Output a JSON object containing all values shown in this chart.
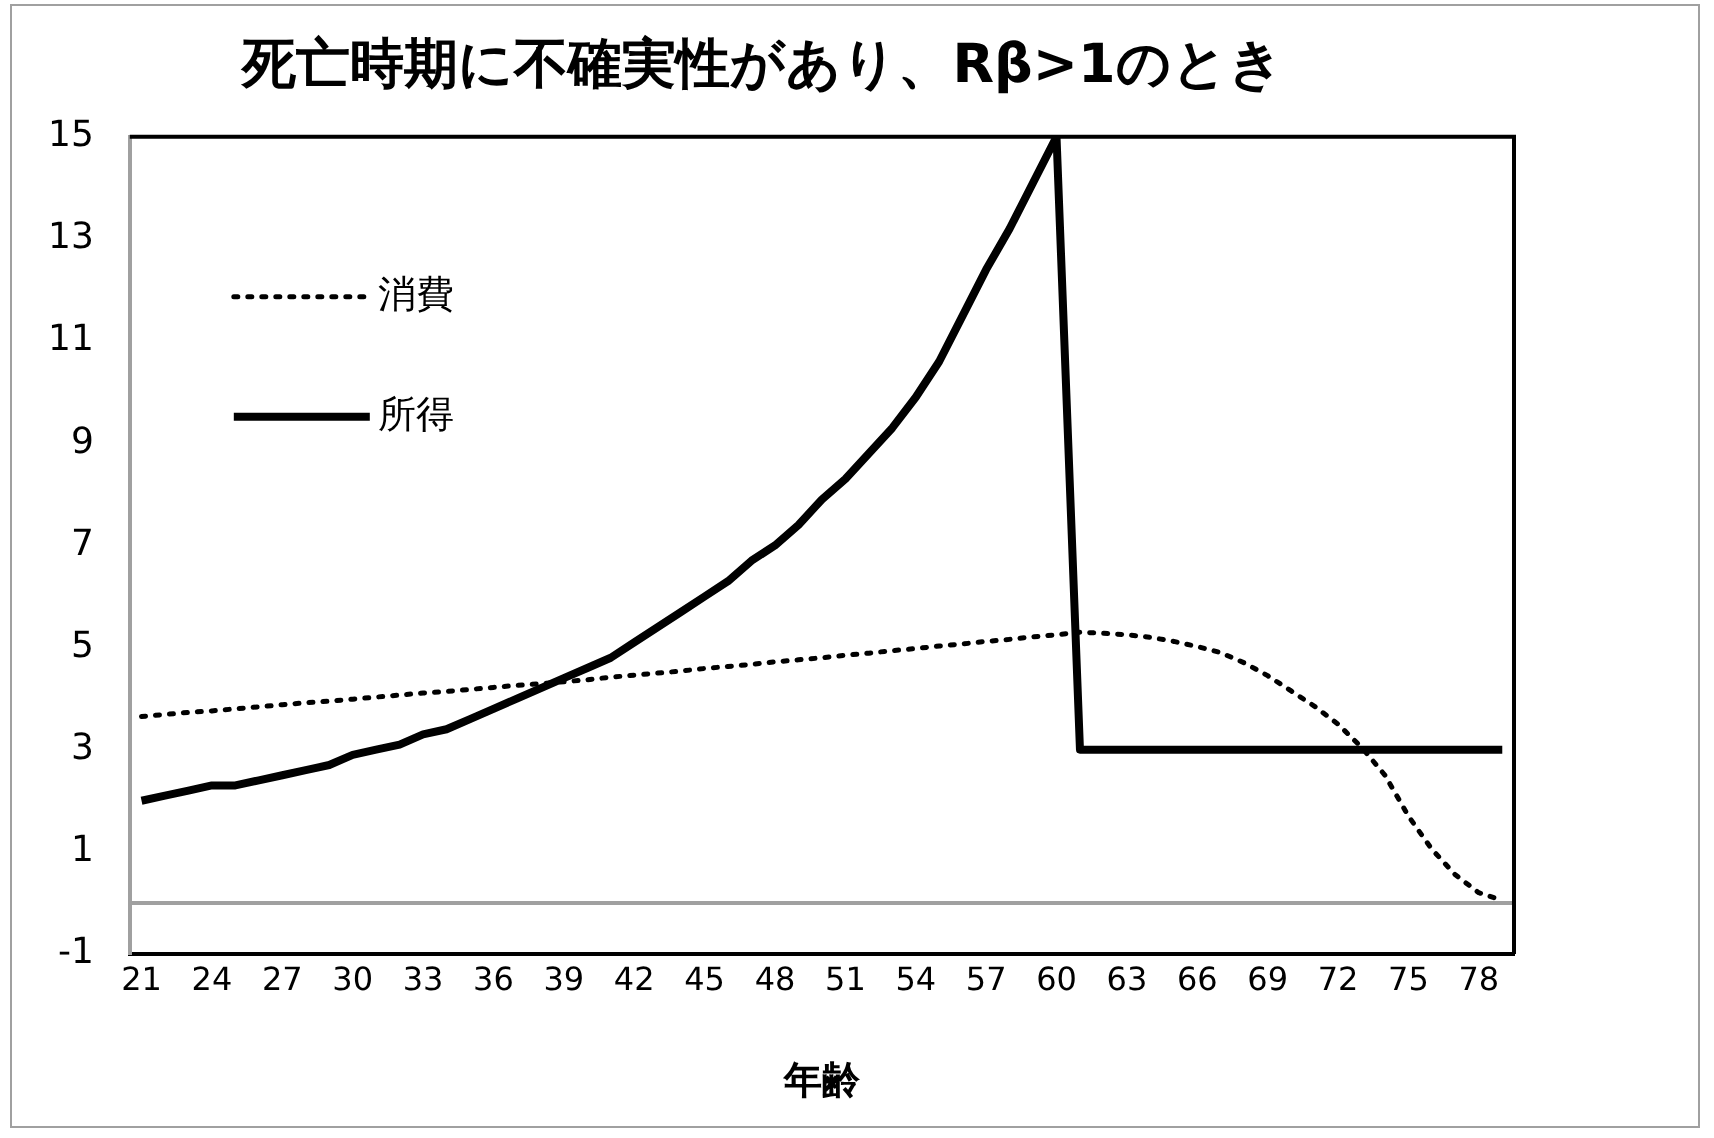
{
  "chart_data": {
    "type": "line",
    "title": "死亡時期に不確実性があり、Rβ>1のとき",
    "xlabel": "年齢",
    "categories": [
      "21",
      null,
      null,
      "24",
      null,
      null,
      "27",
      null,
      null,
      "30",
      null,
      null,
      "33",
      null,
      null,
      "36",
      null,
      null,
      "39",
      null,
      null,
      "42",
      null,
      null,
      "45",
      null,
      null,
      "48",
      null,
      null,
      "51",
      null,
      null,
      "54",
      null,
      null,
      "57",
      null,
      null,
      "60",
      null,
      null,
      "63",
      null,
      null,
      "66",
      null,
      null,
      "69",
      null,
      null,
      "72",
      null,
      null,
      "75",
      null,
      null,
      "78",
      null
    ],
    "series": [
      {
        "name": "消費",
        "color": "#000000",
        "line_style": "dotted",
        "values": [
          3.65,
          3.69,
          3.73,
          3.76,
          3.8,
          3.84,
          3.88,
          3.92,
          3.95,
          3.99,
          4.03,
          4.07,
          4.11,
          4.14,
          4.18,
          4.22,
          4.26,
          4.29,
          4.33,
          4.37,
          4.42,
          4.46,
          4.5,
          4.54,
          4.59,
          4.63,
          4.67,
          4.72,
          4.76,
          4.8,
          4.85,
          4.89,
          4.94,
          4.98,
          5.03,
          5.07,
          5.12,
          5.16,
          5.21,
          5.25,
          5.3,
          5.28,
          5.25,
          5.2,
          5.12,
          5.02,
          4.9,
          4.7,
          4.45,
          4.15,
          3.85,
          3.5,
          3.05,
          2.5,
          1.7,
          1.05,
          0.55,
          0.2,
          0.05
        ]
      },
      {
        "name": "所得",
        "color": "#000000",
        "line_style": "solid",
        "values": [
          2.0,
          2.1,
          2.2,
          2.3,
          2.3,
          2.4,
          2.5,
          2.6,
          2.7,
          2.9,
          3.0,
          3.1,
          3.3,
          3.4,
          3.6,
          3.8,
          4.0,
          4.2,
          4.4,
          4.6,
          4.8,
          5.1,
          5.4,
          5.7,
          6.0,
          6.3,
          6.7,
          7.0,
          7.4,
          7.9,
          8.3,
          8.8,
          9.3,
          9.9,
          10.6,
          11.5,
          12.4,
          13.2,
          14.1,
          15.0,
          3.0,
          3.0,
          3.0,
          3.0,
          3.0,
          3.0,
          3.0,
          3.0,
          3.0,
          3.0,
          3.0,
          3.0,
          3.0,
          3.0,
          3.0,
          3.0,
          3.0,
          3.0,
          3.0
        ]
      }
    ],
    "ylim": [
      -1,
      15
    ],
    "yticks": [
      -1,
      1,
      3,
      5,
      7,
      9,
      11,
      13,
      15
    ],
    "grid": false,
    "legend": "top left",
    "marker": "none",
    "ref_lines": [
      {
        "axis": "y",
        "value": 0,
        "color": "#a0a0a0"
      }
    ]
  }
}
